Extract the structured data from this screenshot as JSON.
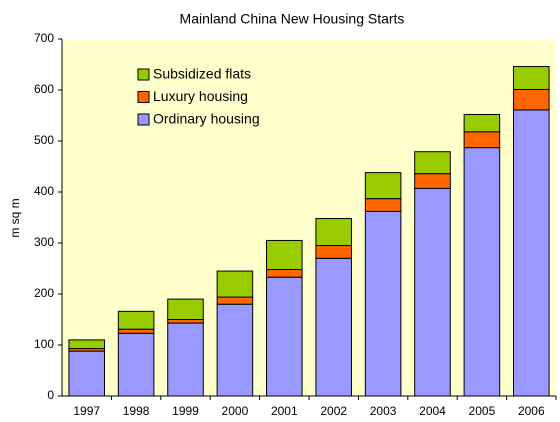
{
  "chart_data": {
    "type": "stacked_bar",
    "title": "Mainland China New Housing Starts",
    "y_label": "m sq m",
    "categories": [
      "1997",
      "1998",
      "1999",
      "2000",
      "2001",
      "2002",
      "2003",
      "2004",
      "2005",
      "2006"
    ],
    "series": [
      {
        "name": "Ordinary housing",
        "color": "#9999ff",
        "values": [
          88,
          123,
          143,
          180,
          233,
          270,
          362,
          407,
          487,
          561
        ]
      },
      {
        "name": "Luxury housing",
        "color": "#ff6600",
        "values": [
          5,
          8,
          7,
          14,
          15,
          25,
          25,
          29,
          31,
          40
        ]
      },
      {
        "name": "Subsidized flats",
        "color": "#99cc00",
        "values": [
          17,
          35,
          40,
          51,
          57,
          53,
          51,
          43,
          34,
          45
        ]
      }
    ],
    "ylim": [
      0,
      700
    ],
    "yticks": [
      0,
      100,
      200,
      300,
      400,
      500,
      600,
      700
    ],
    "legend": "upper left"
  }
}
